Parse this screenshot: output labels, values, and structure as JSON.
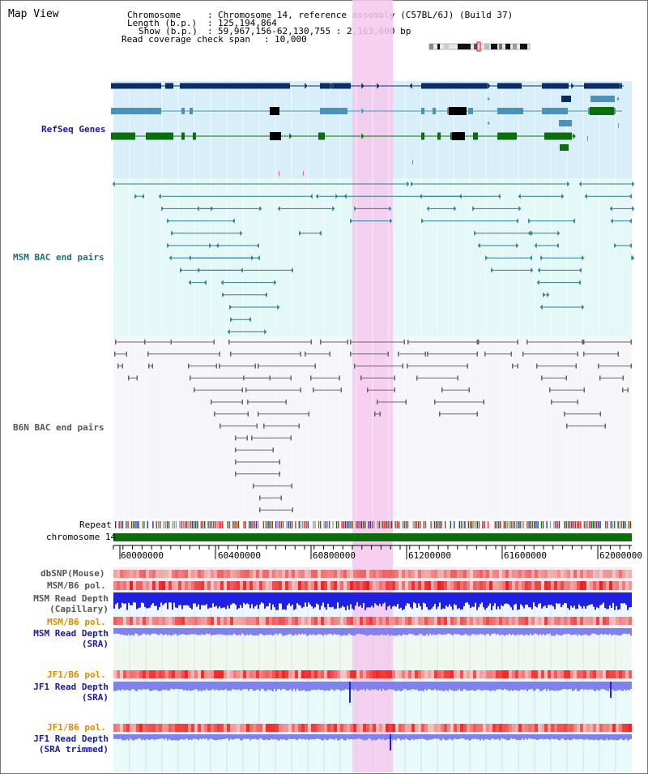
{
  "view": {
    "title": "Map View",
    "chromosome_key": "Chromosome",
    "chromosome_value": "Chromosome 14, reference assembly (C57BL/6J) (Build 37)",
    "length_key": "Length (b.p.)",
    "length_value": "125,194,864",
    "show_key": "Show (b.p.)",
    "show_value": "59,967,156-62,130,755 : 2,163,600 bp",
    "coverage_key": "Read coverage check span",
    "coverage_value": "10,000"
  },
  "tracks": {
    "refseq": "RefSeq Genes",
    "msm_bac": "MSM BAC end pairs",
    "b6n_bac": "B6N BAC end pairs",
    "repeat": "Repeat",
    "chromosome": "chromosome 14",
    "dbsnp": "dbSNP(Mouse)",
    "msm_pol": "MSM/B6 pol.",
    "msm_depth_cap_1": "MSM Read Depth",
    "msm_depth_cap_2": "(Capillary)",
    "msm_pol_sra": "MSM/B6 pol.",
    "msm_depth_sra_1": "MSM Read Depth",
    "msm_depth_sra_2": "(SRA)",
    "jf1_pol": "JF1/B6 pol.",
    "jf1_depth_1": "JF1 Read Depth",
    "jf1_depth_2": "(SRA)",
    "jf1_pol_trim": "JF1/B6 pol.",
    "jf1_trim_1": "JF1 Read Depth",
    "jf1_trim_2": "(SRA trimmed)"
  },
  "axis": {
    "ticks": [
      "60000000",
      "60400000",
      "60800000",
      "61200000",
      "61600000",
      "62000000"
    ]
  },
  "colors": {
    "refseq_bg": "#d8eef8",
    "msm_bg": "#e4f8f8",
    "b6n_bg": "#f6f6fa",
    "highlight": "#f6c8ee",
    "navy_gene": "#0b2d66",
    "teal_gene": "#4a92b8",
    "green_gene": "#0b6e0b",
    "teal_bac": "#2b7d93",
    "gray_bac": "#666666",
    "chrom_bar": "#0b6e0b",
    "depth_blue": "#2020e0",
    "depth_light": "#8080f0"
  }
}
